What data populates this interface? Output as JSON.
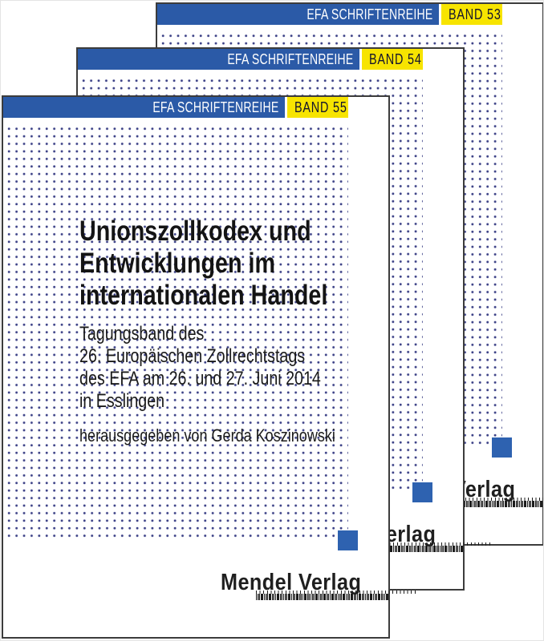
{
  "series": {
    "label": "EFA SCHRIFTENREIHE"
  },
  "covers": [
    {
      "band": "BAND 53"
    },
    {
      "band": "BAND 54"
    },
    {
      "band": "BAND 55"
    }
  ],
  "book": {
    "title_lines": [
      "Unionszollkodex und",
      "Entwicklungen im",
      "internationalen Handel"
    ],
    "subtitle_lines": [
      "Tagungsband des",
      "26. Europäischen Zollrechtstags",
      "des EFA am 26. und 27. Juni 2014",
      "in Esslingen"
    ],
    "editor_line": "herausgegeben von Gerda Koszinowski",
    "publisher": "Mendel Verlag"
  },
  "colors": {
    "bar_blue": "#2b5aa7",
    "band_yellow": "#f7e400",
    "dot_navy": "#3a3f85",
    "accent_square_blue": "#2e62b0",
    "text_black": "#141414"
  }
}
